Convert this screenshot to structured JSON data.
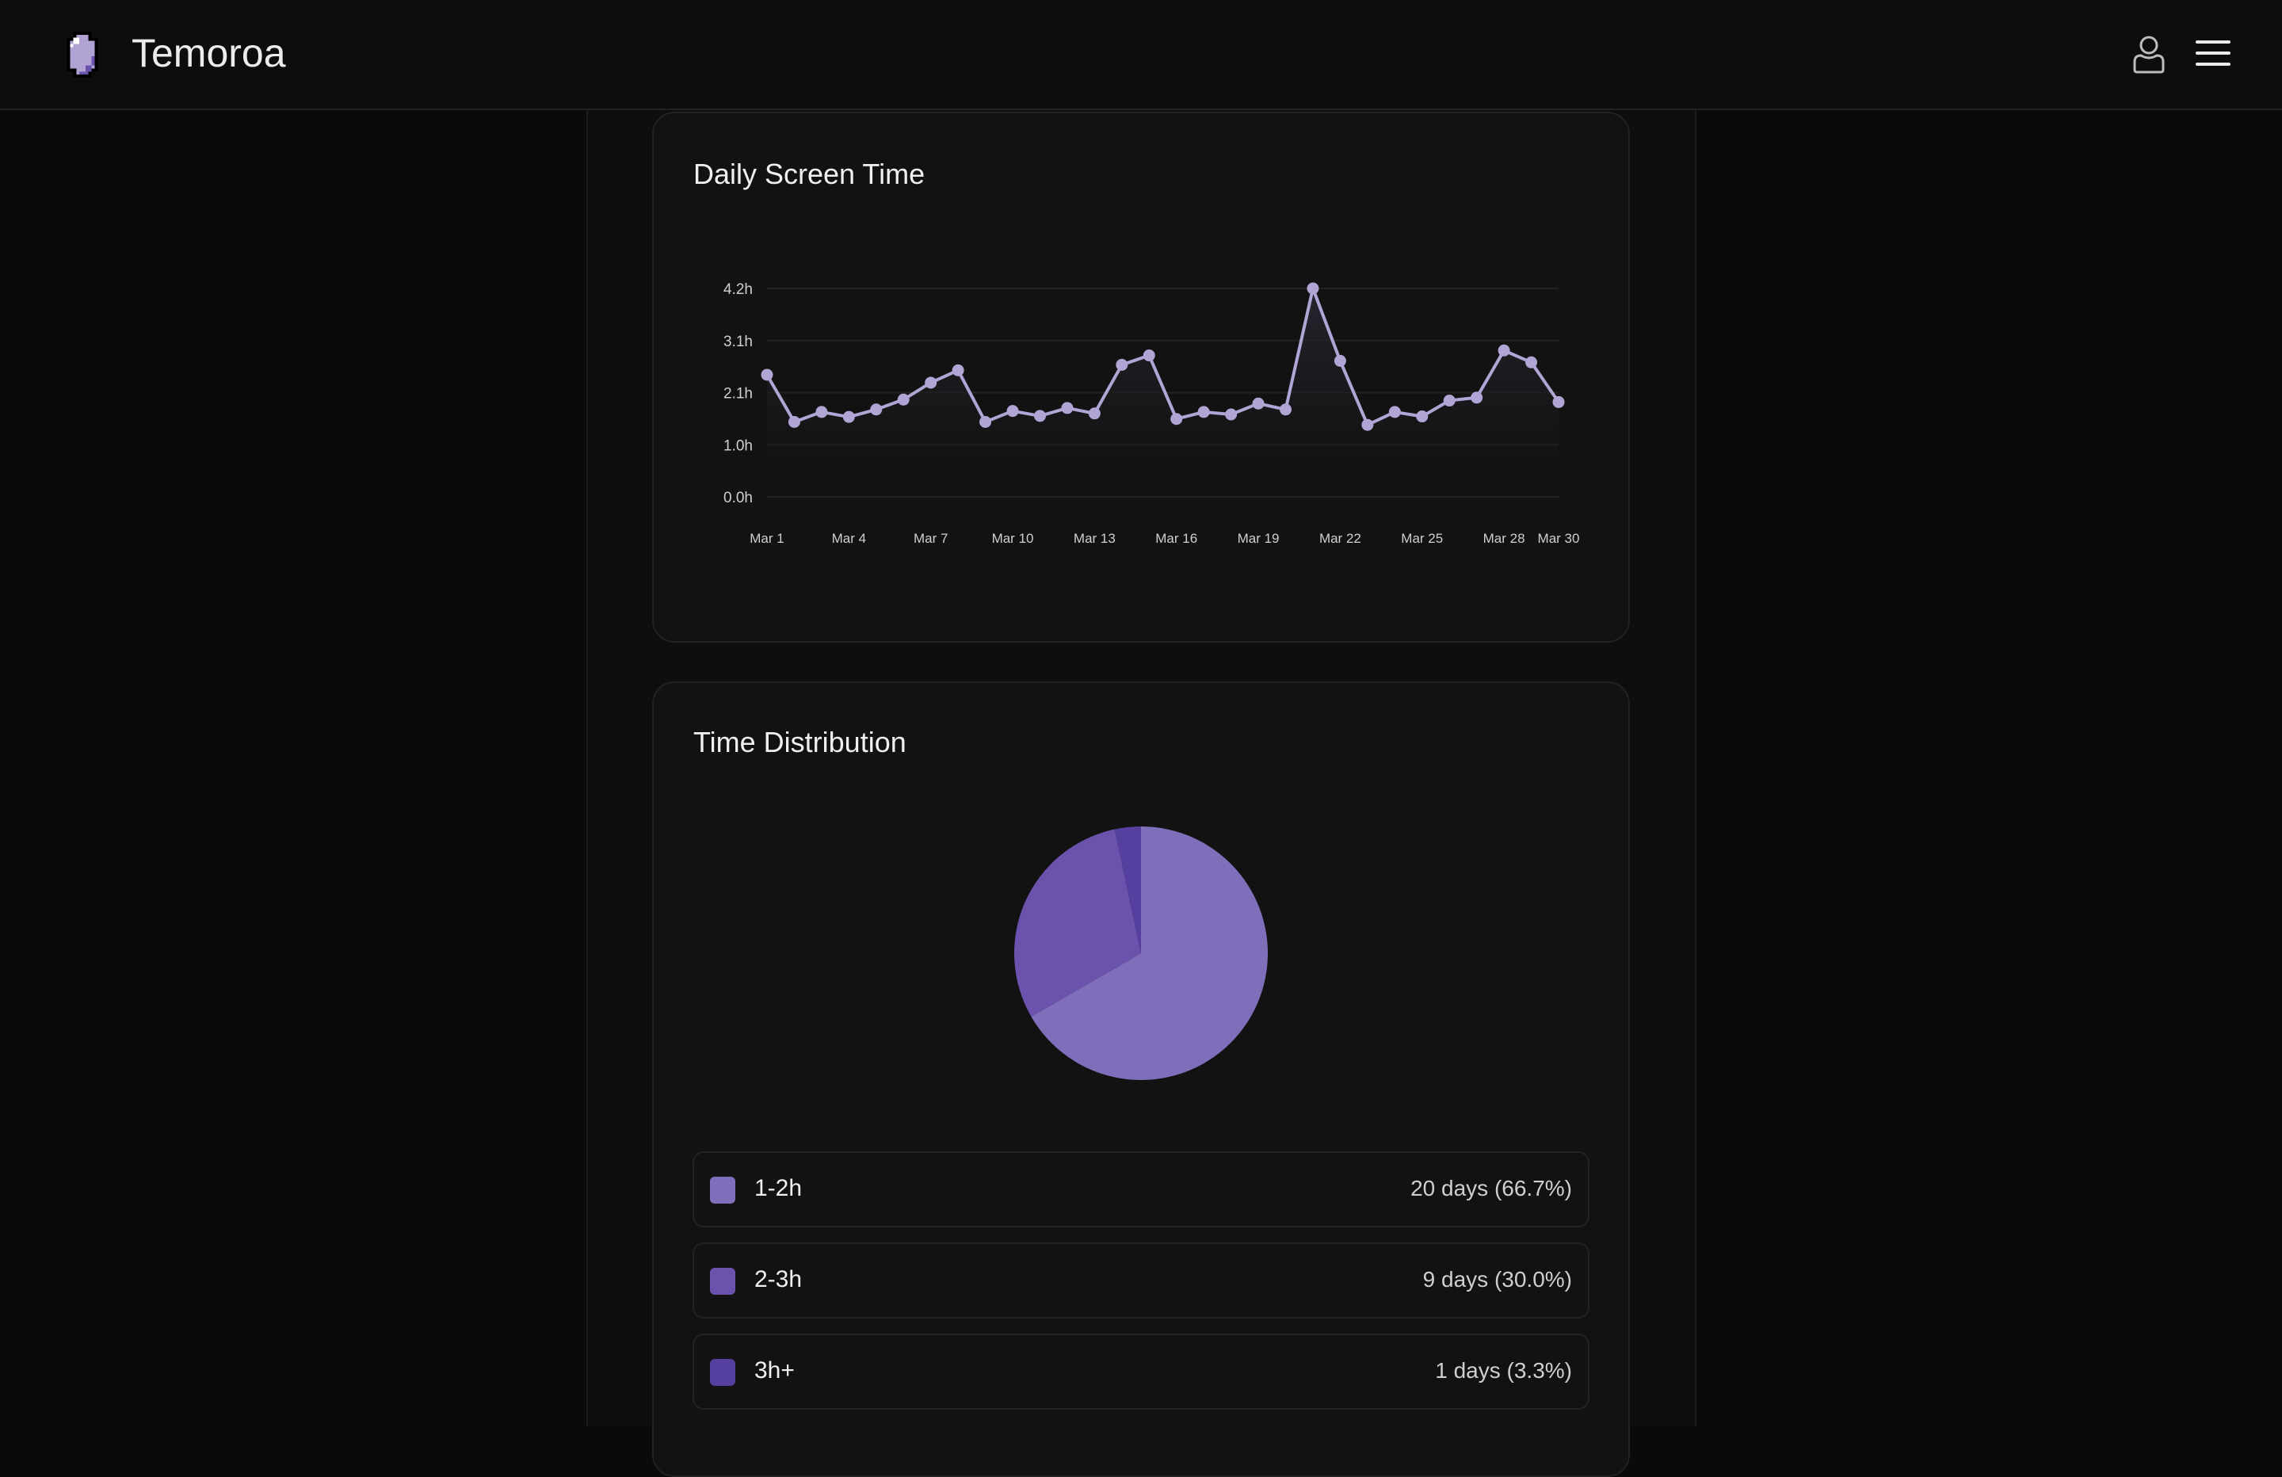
{
  "header": {
    "brand": "Temoroa",
    "user_icon": "user-icon",
    "menu_icon": "hamburger-menu-icon"
  },
  "colors": {
    "line": "#b1a5d6",
    "slice_1_2h": "#7f6fba",
    "slice_2_3h": "#6a52ad",
    "slice_3h_plus": "#5540a0"
  },
  "chart_data": [
    {
      "type": "line",
      "title": "Daily Screen Time",
      "xlabel": "",
      "ylabel": "",
      "x": [
        "Mar 1",
        "Mar 2",
        "Mar 3",
        "Mar 4",
        "Mar 5",
        "Mar 6",
        "Mar 7",
        "Mar 8",
        "Mar 9",
        "Mar 10",
        "Mar 11",
        "Mar 12",
        "Mar 13",
        "Mar 14",
        "Mar 15",
        "Mar 16",
        "Mar 17",
        "Mar 18",
        "Mar 19",
        "Mar 20",
        "Mar 21",
        "Mar 22",
        "Mar 23",
        "Mar 24",
        "Mar 25",
        "Mar 26",
        "Mar 27",
        "Mar 28",
        "Mar 29",
        "Mar 30"
      ],
      "values": [
        2.46,
        1.51,
        1.71,
        1.61,
        1.76,
        1.96,
        2.3,
        2.55,
        1.51,
        1.73,
        1.63,
        1.79,
        1.68,
        2.66,
        2.85,
        1.57,
        1.71,
        1.66,
        1.88,
        1.76,
        4.2,
        2.74,
        1.45,
        1.71,
        1.62,
        1.94,
        2.0,
        2.95,
        2.71,
        1.91
      ],
      "xtick_labels": [
        "Mar 1",
        "Mar 4",
        "Mar 7",
        "Mar 10",
        "Mar 13",
        "Mar 16",
        "Mar 19",
        "Mar 22",
        "Mar 25",
        "Mar 28",
        "Mar 30"
      ],
      "xtick_index": [
        0,
        3,
        6,
        9,
        12,
        15,
        18,
        21,
        24,
        27,
        29
      ],
      "yticks": [
        0,
        1.05,
        2.1,
        3.15,
        4.2
      ],
      "ytick_labels": [
        "0.0h",
        "1.0h",
        "2.1h",
        "3.1h",
        "4.2h"
      ],
      "ylim": [
        0,
        4.2
      ],
      "grid": true
    },
    {
      "type": "pie",
      "title": "Time Distribution",
      "slices": [
        {
          "label": "1-2h",
          "value": 20,
          "percent": 66.7,
          "text": "20 days (66.7%)"
        },
        {
          "label": "2-3h",
          "value": 9,
          "percent": 30.0,
          "text": "9 days (30.0%)"
        },
        {
          "label": "3h+",
          "value": 1,
          "percent": 3.3,
          "text": "1 days (3.3%)"
        }
      ]
    }
  ]
}
